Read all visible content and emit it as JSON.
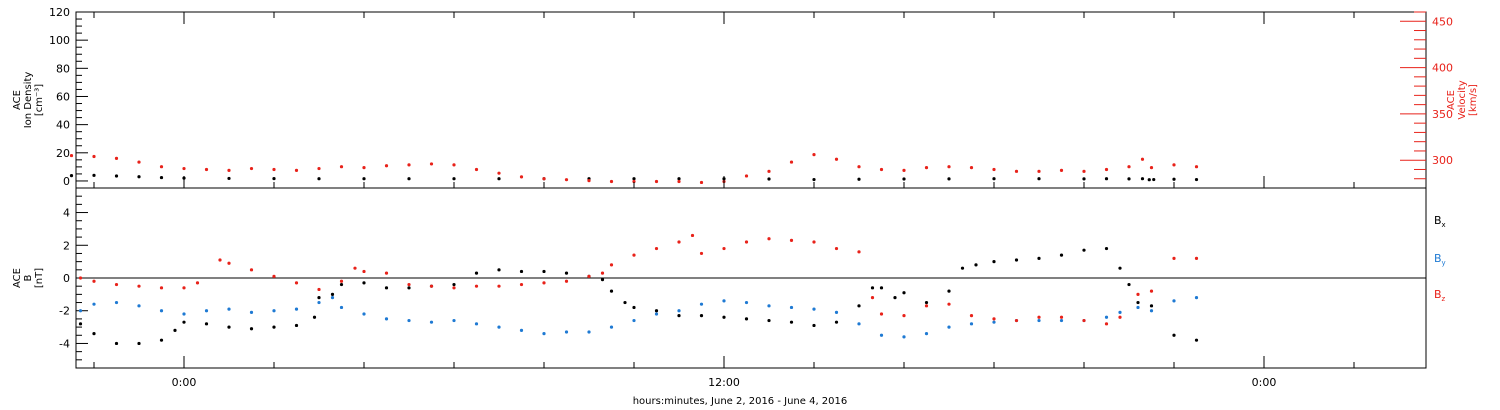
{
  "chart_data": [
    {
      "type": "scatter",
      "title": "",
      "ylabel_lines": [
        "ACE",
        "Ion Density",
        "[cm⁻³]"
      ],
      "y2label_lines": [
        "ACE",
        "Velocity",
        "[km/s]"
      ],
      "ylim": [
        -5,
        120
      ],
      "y2lim": [
        270,
        460
      ],
      "yticks": [
        "0",
        "20",
        "40",
        "60",
        "80",
        "100",
        "120"
      ],
      "y2ticks": [
        "300",
        "350",
        "400",
        "450"
      ],
      "grid": false,
      "colors": {
        "density": "#000000",
        "velocity": "#e8221a",
        "velocity_axis": "#e8221a"
      },
      "series": [
        {
          "axis": "left",
          "color": "#000000",
          "points": [
            [
              -2.5,
              3.8
            ],
            [
              -2.0,
              4.0
            ],
            [
              -1.5,
              3.5
            ],
            [
              -1.0,
              3.0
            ],
            [
              -0.5,
              2.4
            ],
            [
              0,
              2.0
            ],
            [
              1,
              1.8
            ],
            [
              2,
              1.7
            ],
            [
              3,
              1.6
            ],
            [
              4,
              1.6
            ],
            [
              5,
              1.6
            ],
            [
              6,
              1.6
            ],
            [
              7,
              1.6
            ],
            [
              8,
              1.6
            ],
            [
              9,
              1.6
            ],
            [
              10,
              1.6
            ],
            [
              11,
              1.6
            ],
            [
              12,
              1.6
            ],
            [
              13,
              1.4
            ],
            [
              14,
              1.0
            ],
            [
              15,
              1.2
            ],
            [
              16,
              1.4
            ],
            [
              17,
              1.5
            ],
            [
              18,
              1.6
            ],
            [
              19,
              1.6
            ],
            [
              20,
              1.5
            ],
            [
              20.5,
              1.6
            ],
            [
              21,
              1.5
            ],
            [
              21.3,
              1.6
            ],
            [
              21.45,
              0.9
            ],
            [
              21.55,
              1.0
            ],
            [
              22,
              1.2
            ],
            [
              22.5,
              1.0
            ]
          ]
        },
        {
          "axis": "right",
          "color": "#e8221a",
          "points": [
            [
              -2.5,
              305
            ],
            [
              -2.0,
              304
            ],
            [
              -1.5,
              302
            ],
            [
              -1.0,
              298
            ],
            [
              -0.5,
              293
            ],
            [
              0,
              291
            ],
            [
              0.5,
              290
            ],
            [
              1,
              289
            ],
            [
              1.5,
              291
            ],
            [
              2,
              290
            ],
            [
              2.5,
              289
            ],
            [
              3,
              291
            ],
            [
              3.5,
              293
            ],
            [
              4,
              292
            ],
            [
              4.5,
              294
            ],
            [
              5,
              295
            ],
            [
              5.5,
              296
            ],
            [
              6,
              295
            ],
            [
              6.5,
              290
            ],
            [
              7,
              286
            ],
            [
              7.5,
              282
            ],
            [
              8,
              280
            ],
            [
              8.5,
              279
            ],
            [
              9,
              278
            ],
            [
              9.5,
              277
            ],
            [
              10,
              277
            ],
            [
              10.5,
              277
            ],
            [
              11,
              277
            ],
            [
              11.5,
              276
            ],
            [
              12,
              277
            ],
            [
              12.5,
              283
            ],
            [
              13,
              288
            ],
            [
              13.5,
              298
            ],
            [
              14,
              306
            ],
            [
              14.5,
              301
            ],
            [
              15,
              293
            ],
            [
              15.5,
              290
            ],
            [
              16,
              289
            ],
            [
              16.5,
              292
            ],
            [
              17,
              293
            ],
            [
              17.5,
              292
            ],
            [
              18,
              290
            ],
            [
              18.5,
              288
            ],
            [
              19,
              288
            ],
            [
              19.5,
              289
            ],
            [
              20,
              288
            ],
            [
              20.5,
              290
            ],
            [
              21,
              293
            ],
            [
              21.3,
              301
            ],
            [
              21.5,
              292
            ],
            [
              22,
              295
            ],
            [
              22.5,
              293
            ]
          ]
        }
      ]
    },
    {
      "type": "scatter",
      "title": "",
      "ylabel_lines": [
        "ACE",
        "B",
        "[nT]"
      ],
      "ylim": [
        -5.5,
        5.5
      ],
      "yticks": [
        "-4",
        "-2",
        "0",
        "2",
        "4"
      ],
      "zero_line": true,
      "legend": {
        "placement": "right",
        "entries": [
          "B",
          "B",
          "B"
        ],
        "subscripts": [
          "x",
          "y",
          "z"
        ]
      },
      "xlabel": "hours:minutes, June  2, 2016 - June  4, 2016",
      "xticks": [
        "0:00",
        "12:00",
        "0:00"
      ],
      "xtick_hours": [
        0,
        12,
        24
      ],
      "xlim": [
        -2.4,
        27.6
      ],
      "series": [
        {
          "name": "B",
          "color": "#000000",
          "points": [
            [
              -2.3,
              -2.8
            ],
            [
              -2.0,
              -3.4
            ],
            [
              -1.5,
              -4.0
            ],
            [
              -1.0,
              -4.0
            ],
            [
              -0.5,
              -3.8
            ],
            [
              -0.2,
              -3.2
            ],
            [
              0,
              -2.7
            ],
            [
              0.5,
              -2.8
            ],
            [
              1,
              -3.0
            ],
            [
              1.5,
              -3.1
            ],
            [
              2,
              -3.0
            ],
            [
              2.5,
              -2.9
            ],
            [
              2.9,
              -2.4
            ],
            [
              3,
              -1.2
            ],
            [
              3.3,
              -1.0
            ],
            [
              3.5,
              -0.4
            ],
            [
              4,
              -0.3
            ],
            [
              4.5,
              -0.6
            ],
            [
              5,
              -0.6
            ],
            [
              5.5,
              -0.5
            ],
            [
              6,
              -0.4
            ],
            [
              6.5,
              0.3
            ],
            [
              7,
              0.5
            ],
            [
              7.5,
              0.4
            ],
            [
              8,
              0.4
            ],
            [
              8.5,
              0.3
            ],
            [
              9,
              0.1
            ],
            [
              9.3,
              -0.1
            ],
            [
              9.5,
              -0.8
            ],
            [
              9.8,
              -1.5
            ],
            [
              10,
              -1.8
            ],
            [
              10.5,
              -2.0
            ],
            [
              11,
              -2.3
            ],
            [
              11.5,
              -2.3
            ],
            [
              12,
              -2.4
            ],
            [
              12.5,
              -2.5
            ],
            [
              13,
              -2.6
            ],
            [
              13.5,
              -2.7
            ],
            [
              14,
              -2.9
            ],
            [
              14.5,
              -2.7
            ],
            [
              15,
              -1.7
            ],
            [
              15.3,
              -0.6
            ],
            [
              15.5,
              -0.6
            ],
            [
              15.8,
              -1.2
            ],
            [
              16,
              -0.9
            ],
            [
              16.5,
              -1.5
            ],
            [
              17,
              -0.8
            ],
            [
              17.3,
              0.6
            ],
            [
              17.6,
              0.8
            ],
            [
              18,
              1.0
            ],
            [
              18.5,
              1.1
            ],
            [
              19,
              1.2
            ],
            [
              19.5,
              1.4
            ],
            [
              20,
              1.7
            ],
            [
              20.5,
              1.8
            ],
            [
              20.8,
              0.6
            ],
            [
              21,
              -0.4
            ],
            [
              21.2,
              -1.5
            ],
            [
              21.5,
              -1.7
            ],
            [
              22,
              -3.5
            ],
            [
              22.5,
              -3.8
            ]
          ]
        },
        {
          "name": "B",
          "color": "#1f7ad3",
          "points": [
            [
              -2.3,
              -2.0
            ],
            [
              -2.0,
              -1.6
            ],
            [
              -1.5,
              -1.5
            ],
            [
              -1.0,
              -1.7
            ],
            [
              -0.5,
              -2.0
            ],
            [
              0,
              -2.2
            ],
            [
              0.5,
              -2.0
            ],
            [
              1,
              -1.9
            ],
            [
              1.5,
              -2.1
            ],
            [
              2,
              -2.0
            ],
            [
              2.5,
              -1.9
            ],
            [
              3,
              -1.5
            ],
            [
              3.3,
              -1.2
            ],
            [
              3.5,
              -1.8
            ],
            [
              4,
              -2.2
            ],
            [
              4.5,
              -2.5
            ],
            [
              5,
              -2.6
            ],
            [
              5.5,
              -2.7
            ],
            [
              6,
              -2.6
            ],
            [
              6.5,
              -2.8
            ],
            [
              7,
              -3.0
            ],
            [
              7.5,
              -3.2
            ],
            [
              8,
              -3.4
            ],
            [
              8.5,
              -3.3
            ],
            [
              9,
              -3.3
            ],
            [
              9.5,
              -3.0
            ],
            [
              10,
              -2.6
            ],
            [
              10.5,
              -2.2
            ],
            [
              11,
              -2.0
            ],
            [
              11.5,
              -1.6
            ],
            [
              12,
              -1.4
            ],
            [
              12.5,
              -1.5
            ],
            [
              13,
              -1.7
            ],
            [
              13.5,
              -1.8
            ],
            [
              14,
              -1.9
            ],
            [
              14.5,
              -2.1
            ],
            [
              15,
              -2.8
            ],
            [
              15.5,
              -3.5
            ],
            [
              16,
              -3.6
            ],
            [
              16.5,
              -3.4
            ],
            [
              17,
              -3.0
            ],
            [
              17.5,
              -2.8
            ],
            [
              18,
              -2.7
            ],
            [
              18.5,
              -2.6
            ],
            [
              19,
              -2.6
            ],
            [
              19.5,
              -2.6
            ],
            [
              20,
              -2.6
            ],
            [
              20.5,
              -2.4
            ],
            [
              20.8,
              -2.1
            ],
            [
              21.2,
              -1.8
            ],
            [
              21.5,
              -2.0
            ],
            [
              22,
              -1.4
            ],
            [
              22.5,
              -1.2
            ]
          ]
        },
        {
          "name": "B",
          "color": "#e8221a",
          "points": [
            [
              -2.3,
              0.0
            ],
            [
              -2.0,
              -0.2
            ],
            [
              -1.5,
              -0.4
            ],
            [
              -1.0,
              -0.5
            ],
            [
              -0.5,
              -0.6
            ],
            [
              0,
              -0.6
            ],
            [
              0.3,
              -0.3
            ],
            [
              0.8,
              1.1
            ],
            [
              1,
              0.9
            ],
            [
              1.5,
              0.5
            ],
            [
              2,
              0.1
            ],
            [
              2.5,
              -0.3
            ],
            [
              3,
              -0.7
            ],
            [
              3.5,
              -0.2
            ],
            [
              3.8,
              0.6
            ],
            [
              4,
              0.4
            ],
            [
              4.5,
              0.3
            ],
            [
              5,
              -0.4
            ],
            [
              5.5,
              -0.5
            ],
            [
              6,
              -0.6
            ],
            [
              6.5,
              -0.5
            ],
            [
              7,
              -0.5
            ],
            [
              7.5,
              -0.4
            ],
            [
              8,
              -0.3
            ],
            [
              8.5,
              -0.2
            ],
            [
              9,
              0.1
            ],
            [
              9.3,
              0.3
            ],
            [
              9.5,
              0.8
            ],
            [
              10,
              1.4
            ],
            [
              10.5,
              1.8
            ],
            [
              11,
              2.2
            ],
            [
              11.3,
              2.6
            ],
            [
              11.5,
              1.5
            ],
            [
              12,
              1.8
            ],
            [
              12.5,
              2.2
            ],
            [
              13,
              2.4
            ],
            [
              13.5,
              2.3
            ],
            [
              14,
              2.2
            ],
            [
              14.5,
              1.8
            ],
            [
              15,
              1.6
            ],
            [
              15.3,
              -1.2
            ],
            [
              15.5,
              -2.2
            ],
            [
              16,
              -2.3
            ],
            [
              16.5,
              -1.7
            ],
            [
              17,
              -1.6
            ],
            [
              17.5,
              -2.3
            ],
            [
              18,
              -2.5
            ],
            [
              18.5,
              -2.6
            ],
            [
              19,
              -2.4
            ],
            [
              19.5,
              -2.4
            ],
            [
              20,
              -2.6
            ],
            [
              20.5,
              -2.8
            ],
            [
              20.8,
              -2.4
            ],
            [
              21.2,
              -1.0
            ],
            [
              21.5,
              -0.8
            ],
            [
              22,
              1.2
            ],
            [
              22.5,
              1.2
            ]
          ]
        }
      ]
    }
  ]
}
